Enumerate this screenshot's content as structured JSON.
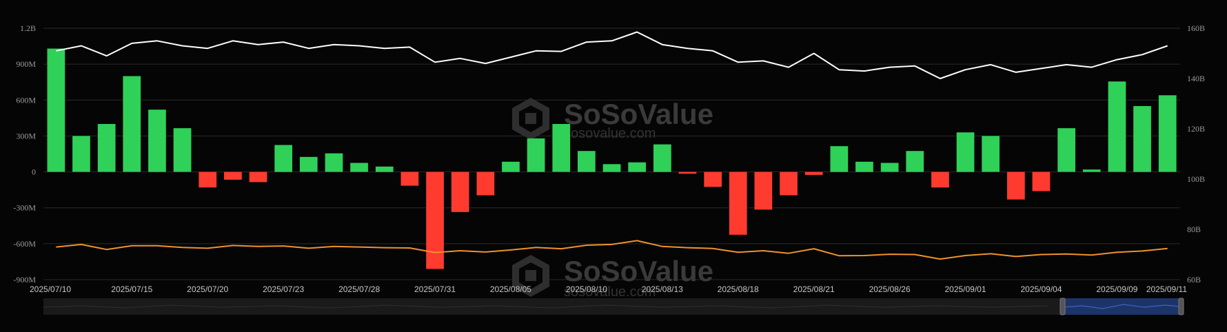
{
  "watermark": {
    "brand": "SoSoValue",
    "url": "sosovalue.com"
  },
  "colors": {
    "positive": "#2fd158",
    "negative": "#ff3b30",
    "price_line": "#ffffff",
    "secondary_line": "#f0922a",
    "grid": "#2a2a2a",
    "background": "#050505",
    "slider": "#1e3a78"
  },
  "chart_data": {
    "type": "bar",
    "grid": true,
    "y_left": {
      "ylim": [
        -900000000,
        1200000000
      ],
      "ticks": [
        "1.2B",
        "900M",
        "600M",
        "300M",
        "0",
        "-300M",
        "-600M",
        "-900M"
      ]
    },
    "y_right": {
      "ylim": [
        60,
        160
      ],
      "ticks": [
        "160B",
        "140B",
        "120B",
        "100B",
        "80B",
        "60B"
      ]
    },
    "x_ticks": [
      "2025/07/10",
      "2025/07/15",
      "2025/07/20",
      "2025/07/23",
      "2025/07/28",
      "2025/07/31",
      "2025/08/05",
      "2025/08/10",
      "2025/08/13",
      "2025/08/18",
      "2025/08/21",
      "2025/08/26",
      "2025/09/01",
      "2025/09/04",
      "2025/09/09",
      "2025/09/11"
    ],
    "tick_index": [
      0,
      3,
      6,
      9,
      12,
      15,
      18,
      21,
      24,
      27,
      30,
      33,
      36,
      39,
      42,
      44
    ],
    "series": [
      {
        "type": "bar",
        "axis": "left",
        "values": [
          1030000000,
          300000000,
          400000000,
          800000000,
          520000000,
          365000000,
          -130000000,
          -65000000,
          -85000000,
          225000000,
          125000000,
          155000000,
          75000000,
          45000000,
          -115000000,
          -810000000,
          -335000000,
          -195000000,
          85000000,
          280000000,
          400000000,
          175000000,
          65000000,
          80000000,
          230000000,
          -15000000,
          -125000000,
          -525000000,
          -315000000,
          -195000000,
          -25000000,
          215000000,
          85000000,
          75000000,
          175000000,
          -130000000,
          330000000,
          300000000,
          -230000000,
          -160000000,
          365000000,
          20000000,
          755000000,
          550000000,
          640000000
        ]
      },
      {
        "type": "line",
        "axis": "right",
        "values": [
          151,
          153,
          149,
          154,
          155,
          153,
          152,
          155,
          153.5,
          154.5,
          152,
          153.5,
          153,
          152,
          152.5,
          146.5,
          148,
          146,
          148.5,
          151,
          150.8,
          154.5,
          155,
          158.5,
          153.5,
          152,
          151,
          146.5,
          147,
          144.5,
          150,
          143.5,
          143,
          144.5,
          145,
          140,
          143.5,
          145.5,
          142.5,
          144,
          145.5,
          144.5,
          147.5,
          149.5,
          153
        ]
      },
      {
        "type": "line",
        "axis": "right",
        "values": [
          73,
          74,
          72,
          73.5,
          73.5,
          72.8,
          72.5,
          73.6,
          73.2,
          73.4,
          72.5,
          73.2,
          73,
          72.7,
          72.6,
          70.8,
          71.5,
          71,
          71.8,
          72.8,
          72.3,
          73.7,
          74,
          75.5,
          73.2,
          72.7,
          72.4,
          70.9,
          71.5,
          70.5,
          72.3,
          69.5,
          69.6,
          70.1,
          70,
          68.2,
          69.6,
          70.3,
          69.2,
          70,
          70.2,
          69.8,
          70.9,
          71.4,
          72.4
        ]
      }
    ]
  }
}
